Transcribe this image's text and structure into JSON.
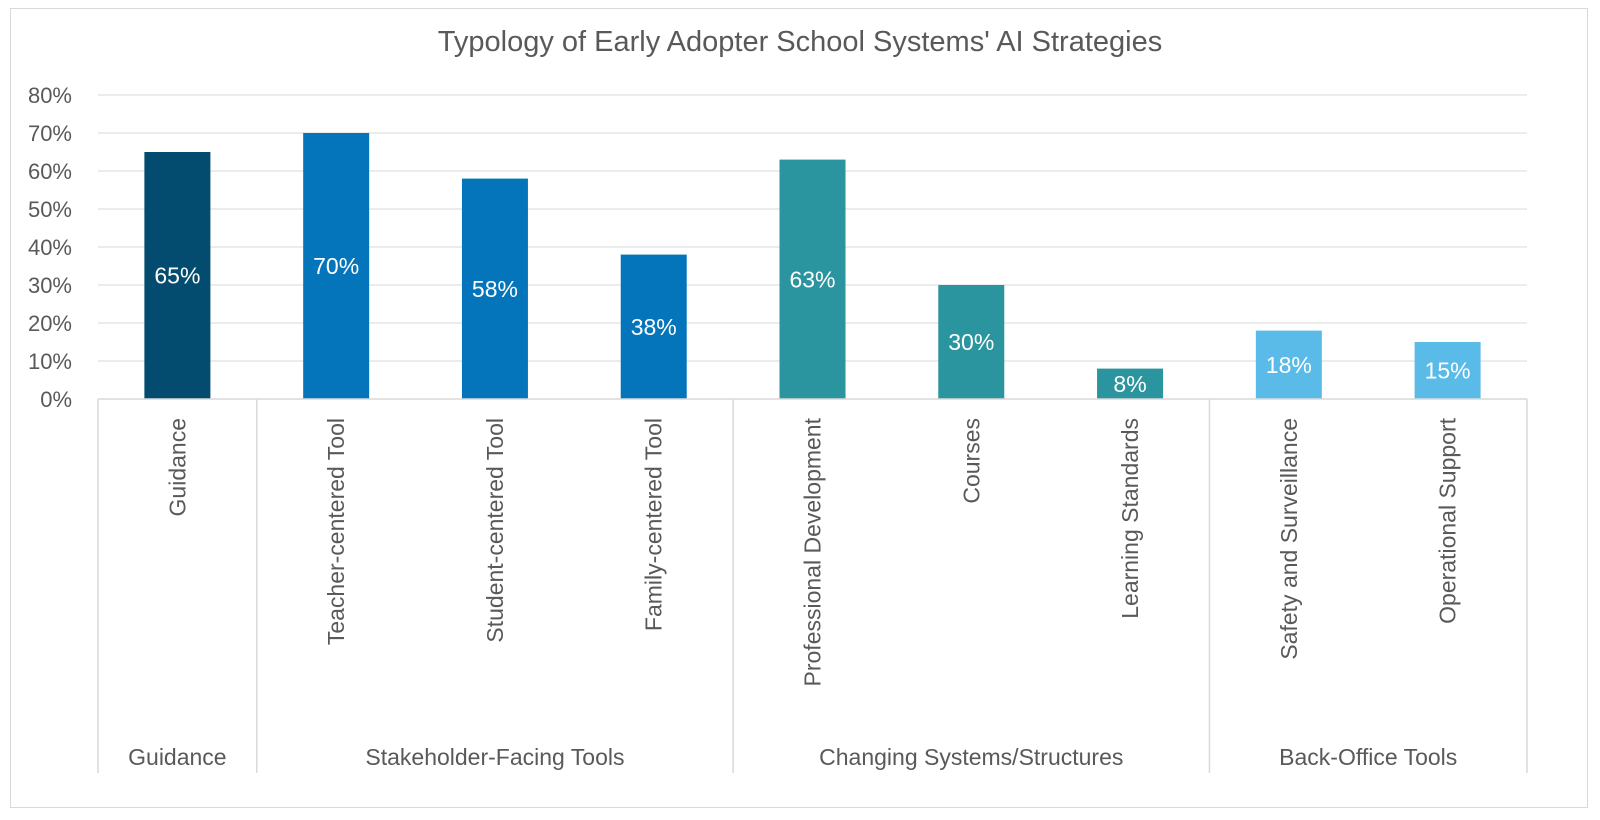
{
  "chart_data": {
    "type": "bar",
    "title": "Typology of Early Adopter School Systems' AI Strategies",
    "xlabel": "",
    "ylabel": "",
    "ylim": [
      0,
      0.8
    ],
    "y_ticks": [
      "0%",
      "10%",
      "20%",
      "30%",
      "40%",
      "50%",
      "60%",
      "70%",
      "80%"
    ],
    "grid": true,
    "legend": "none",
    "categories": [
      "Guidance",
      "Teacher-centered Tool",
      "Student-centered Tool",
      "Family-centered Tool",
      "Professional Development",
      "Courses",
      "Learning Standards",
      "Safety and Surveillance",
      "Operational Support"
    ],
    "values": [
      0.65,
      0.7,
      0.58,
      0.38,
      0.63,
      0.3,
      0.08,
      0.18,
      0.15
    ],
    "data_labels": [
      "65%",
      "70%",
      "58%",
      "38%",
      "63%",
      "30%",
      "8%",
      "18%",
      "15%"
    ],
    "groups": [
      {
        "name": "Guidance",
        "categories": [
          "Guidance"
        ],
        "color": "#034b6f"
      },
      {
        "name": "Stakeholder-Facing Tools",
        "categories": [
          "Teacher-centered Tool",
          "Student-centered Tool",
          "Family-centered Tool"
        ],
        "color": "#0575bb"
      },
      {
        "name": "Changing Systems/Structures",
        "categories": [
          "Professional Development",
          "Courses",
          "Learning Standards"
        ],
        "color": "#2a959e"
      },
      {
        "name": "Back-Office Tools",
        "categories": [
          "Safety and Surveillance",
          "Operational Support"
        ],
        "color": "#5bbbe8"
      }
    ]
  }
}
